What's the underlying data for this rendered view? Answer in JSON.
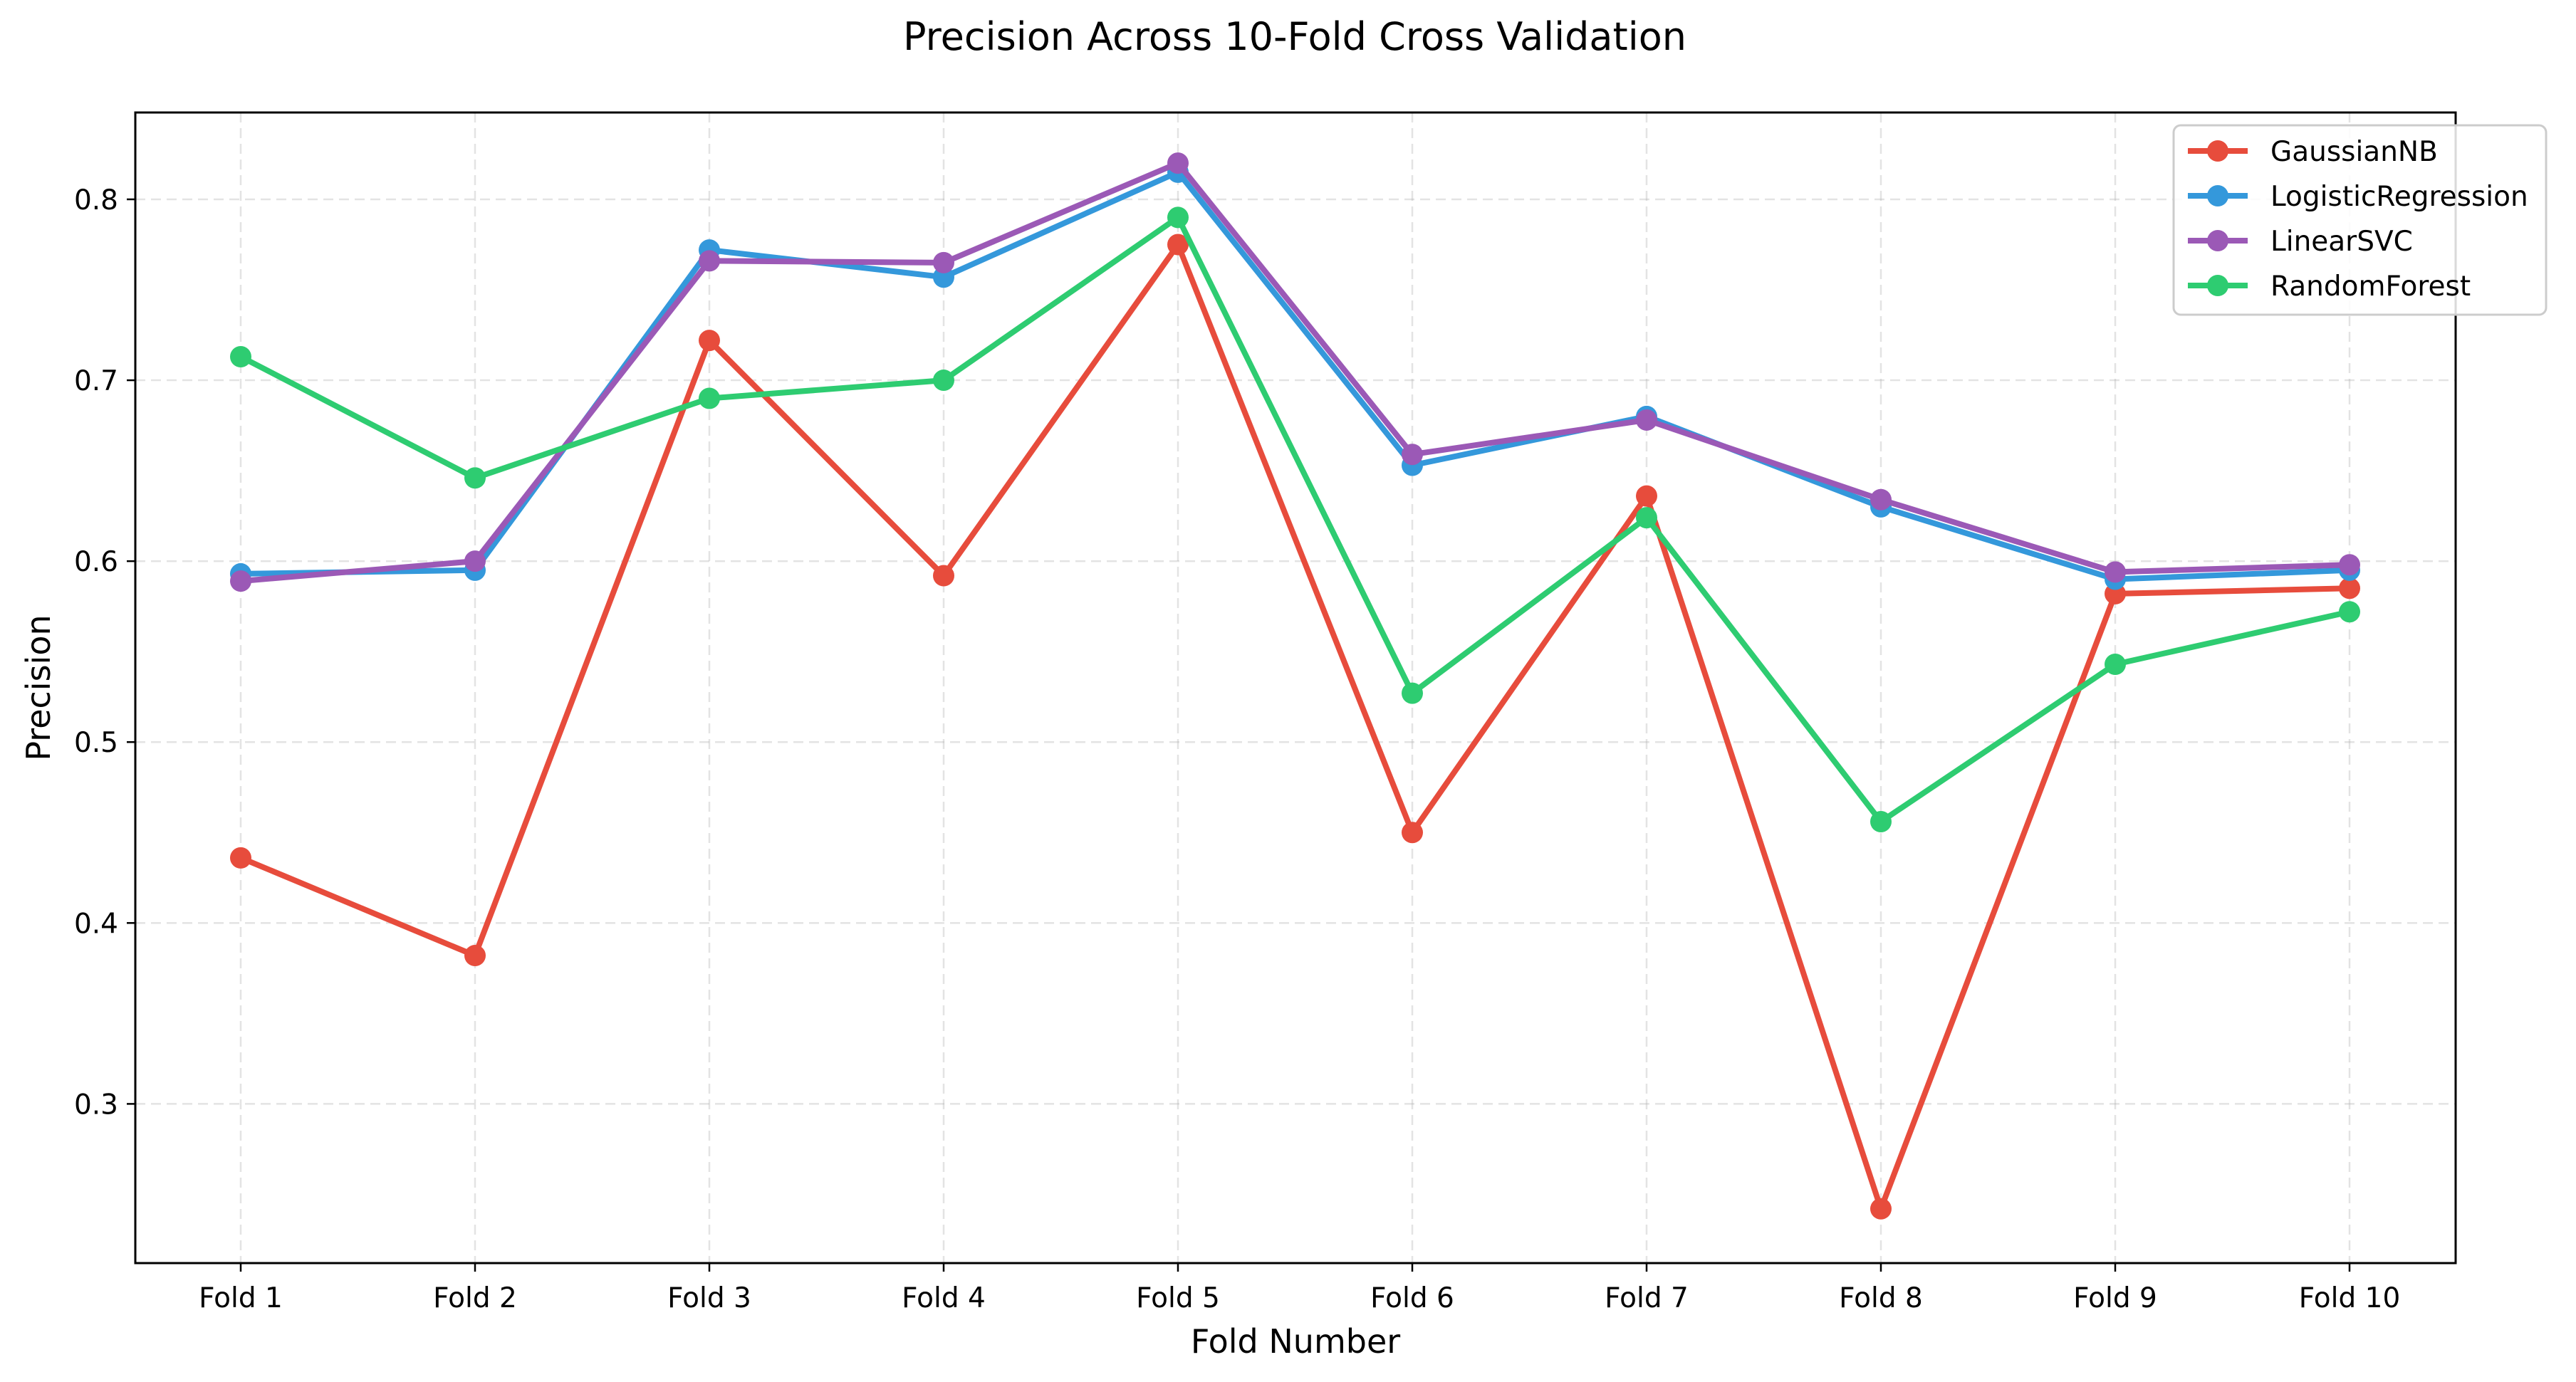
{
  "chart_data": {
    "type": "line",
    "title": "Precision Across 10-Fold Cross Validation",
    "xlabel": "Fold Number",
    "ylabel": "Precision",
    "categories": [
      "Fold 1",
      "Fold 2",
      "Fold 3",
      "Fold 4",
      "Fold 5",
      "Fold 6",
      "Fold 7",
      "Fold 8",
      "Fold 9",
      "Fold 10"
    ],
    "ylim": [
      0.212,
      0.848
    ],
    "yticks": [
      0.3,
      0.4,
      0.5,
      0.6,
      0.7,
      0.8
    ],
    "ytick_labels": [
      "0.3",
      "0.4",
      "0.5",
      "0.6",
      "0.7",
      "0.8"
    ],
    "grid": true,
    "legend_position": "top-right",
    "series": [
      {
        "name": "GaussianNB",
        "color": "#e74c3c",
        "values": [
          0.436,
          0.382,
          0.722,
          0.592,
          0.775,
          0.45,
          0.636,
          0.242,
          0.582,
          0.585
        ]
      },
      {
        "name": "LogisticRegression",
        "color": "#3498db",
        "values": [
          0.593,
          0.595,
          0.772,
          0.757,
          0.815,
          0.653,
          0.68,
          0.63,
          0.59,
          0.595
        ]
      },
      {
        "name": "LinearSVC",
        "color": "#9b59b6",
        "values": [
          0.589,
          0.6,
          0.766,
          0.765,
          0.82,
          0.659,
          0.678,
          0.634,
          0.594,
          0.598
        ]
      },
      {
        "name": "RandomForest",
        "color": "#2ecc71",
        "values": [
          0.713,
          0.646,
          0.69,
          0.7,
          0.79,
          0.527,
          0.624,
          0.456,
          0.543,
          0.572
        ]
      }
    ]
  }
}
